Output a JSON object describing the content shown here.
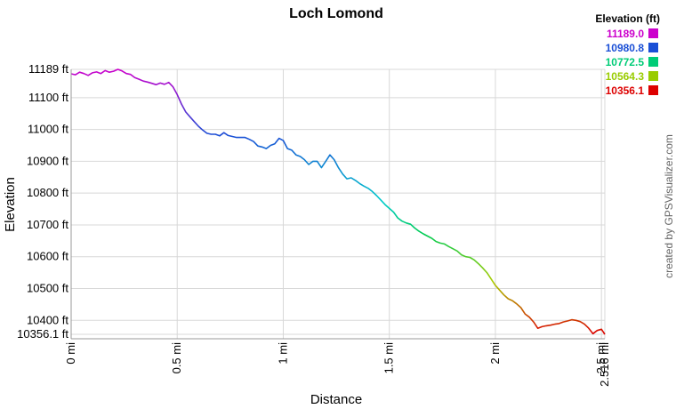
{
  "chart_data": {
    "type": "line",
    "title": "Loch Lomond",
    "xlabel": "Distance",
    "ylabel": "Elevation",
    "xlim": [
      0,
      2.516
    ],
    "ylim": [
      10356.1,
      11189
    ],
    "x_ticks": [
      {
        "value": 0,
        "label": "0 mi"
      },
      {
        "value": 0.5,
        "label": "0.5 mi"
      },
      {
        "value": 1,
        "label": "1 mi"
      },
      {
        "value": 1.5,
        "label": "1.5 mi"
      },
      {
        "value": 2,
        "label": "2 mi"
      },
      {
        "value": 2.5,
        "label": "2.5 mi"
      },
      {
        "value": 2.516,
        "label": "2.516 mi"
      }
    ],
    "y_ticks": [
      {
        "value": 11189,
        "label": "11189 ft"
      },
      {
        "value": 11100,
        "label": "11100 ft"
      },
      {
        "value": 11000,
        "label": "11000 ft"
      },
      {
        "value": 10900,
        "label": "10900 ft"
      },
      {
        "value": 10800,
        "label": "10800 ft"
      },
      {
        "value": 10700,
        "label": "10700 ft"
      },
      {
        "value": 10600,
        "label": "10600 ft"
      },
      {
        "value": 10500,
        "label": "10500 ft"
      },
      {
        "value": 10400,
        "label": "10400 ft"
      },
      {
        "value": 10356.1,
        "label": "10356.1 ft"
      }
    ],
    "grid": true,
    "legend": {
      "title": "Elevation (ft)",
      "position": "top-right",
      "entries": [
        {
          "label": "11189.0",
          "color": "#cc00cc"
        },
        {
          "label": "10980.8",
          "color": "#1a4fd6"
        },
        {
          "label": "10772.5",
          "color": "#00cc77"
        },
        {
          "label": "10564.3",
          "color": "#99cc00"
        },
        {
          "label": "10356.1",
          "color": "#dd0000"
        }
      ]
    },
    "credit": "created by GPSVisualizer.com",
    "series": [
      {
        "points": [
          [
            0.0,
            11175
          ],
          [
            0.02,
            11172
          ],
          [
            0.04,
            11180
          ],
          [
            0.06,
            11176
          ],
          [
            0.08,
            11170
          ],
          [
            0.1,
            11178
          ],
          [
            0.12,
            11181
          ],
          [
            0.14,
            11176
          ],
          [
            0.16,
            11185
          ],
          [
            0.18,
            11180
          ],
          [
            0.2,
            11183
          ],
          [
            0.22,
            11189
          ],
          [
            0.24,
            11184
          ],
          [
            0.26,
            11176
          ],
          [
            0.28,
            11173
          ],
          [
            0.3,
            11163
          ],
          [
            0.32,
            11158
          ],
          [
            0.34,
            11152
          ],
          [
            0.36,
            11149
          ],
          [
            0.38,
            11145
          ],
          [
            0.4,
            11141
          ],
          [
            0.42,
            11146
          ],
          [
            0.44,
            11142
          ],
          [
            0.46,
            11148
          ],
          [
            0.48,
            11134
          ],
          [
            0.5,
            11110
          ],
          [
            0.52,
            11080
          ],
          [
            0.54,
            11055
          ],
          [
            0.56,
            11040
          ],
          [
            0.58,
            11025
          ],
          [
            0.6,
            11010
          ],
          [
            0.62,
            10998
          ],
          [
            0.64,
            10988
          ],
          [
            0.66,
            10985
          ],
          [
            0.68,
            10985
          ],
          [
            0.7,
            10980
          ],
          [
            0.72,
            10990
          ],
          [
            0.74,
            10981
          ],
          [
            0.76,
            10978
          ],
          [
            0.78,
            10975
          ],
          [
            0.8,
            10975
          ],
          [
            0.82,
            10975
          ],
          [
            0.84,
            10969
          ],
          [
            0.86,
            10962
          ],
          [
            0.88,
            10948
          ],
          [
            0.9,
            10945
          ],
          [
            0.92,
            10940
          ],
          [
            0.94,
            10950
          ],
          [
            0.96,
            10955
          ],
          [
            0.98,
            10972
          ],
          [
            1.0,
            10965
          ],
          [
            1.02,
            10940
          ],
          [
            1.04,
            10935
          ],
          [
            1.06,
            10920
          ],
          [
            1.08,
            10915
          ],
          [
            1.1,
            10905
          ],
          [
            1.12,
            10890
          ],
          [
            1.14,
            10900
          ],
          [
            1.16,
            10900
          ],
          [
            1.18,
            10880
          ],
          [
            1.2,
            10900
          ],
          [
            1.22,
            10920
          ],
          [
            1.24,
            10905
          ],
          [
            1.26,
            10880
          ],
          [
            1.28,
            10860
          ],
          [
            1.3,
            10845
          ],
          [
            1.32,
            10848
          ],
          [
            1.34,
            10840
          ],
          [
            1.36,
            10830
          ],
          [
            1.38,
            10822
          ],
          [
            1.4,
            10815
          ],
          [
            1.42,
            10805
          ],
          [
            1.44,
            10792
          ],
          [
            1.46,
            10778
          ],
          [
            1.48,
            10764
          ],
          [
            1.5,
            10752
          ],
          [
            1.52,
            10740
          ],
          [
            1.54,
            10722
          ],
          [
            1.56,
            10712
          ],
          [
            1.58,
            10706
          ],
          [
            1.6,
            10702
          ],
          [
            1.62,
            10690
          ],
          [
            1.64,
            10680
          ],
          [
            1.66,
            10672
          ],
          [
            1.68,
            10665
          ],
          [
            1.7,
            10658
          ],
          [
            1.72,
            10648
          ],
          [
            1.74,
            10643
          ],
          [
            1.76,
            10640
          ],
          [
            1.78,
            10632
          ],
          [
            1.8,
            10625
          ],
          [
            1.82,
            10618
          ],
          [
            1.84,
            10606
          ],
          [
            1.86,
            10600
          ],
          [
            1.88,
            10598
          ],
          [
            1.9,
            10590
          ],
          [
            1.92,
            10578
          ],
          [
            1.94,
            10565
          ],
          [
            1.96,
            10550
          ],
          [
            1.98,
            10530
          ],
          [
            2.0,
            10510
          ],
          [
            2.02,
            10495
          ],
          [
            2.04,
            10480
          ],
          [
            2.06,
            10468
          ],
          [
            2.08,
            10462
          ],
          [
            2.1,
            10452
          ],
          [
            2.12,
            10440
          ],
          [
            2.14,
            10420
          ],
          [
            2.16,
            10410
          ],
          [
            2.18,
            10395
          ],
          [
            2.2,
            10375
          ],
          [
            2.22,
            10380
          ],
          [
            2.24,
            10383
          ],
          [
            2.26,
            10385
          ],
          [
            2.28,
            10388
          ],
          [
            2.3,
            10390
          ],
          [
            2.32,
            10395
          ],
          [
            2.34,
            10398
          ],
          [
            2.36,
            10402
          ],
          [
            2.38,
            10400
          ],
          [
            2.4,
            10396
          ],
          [
            2.42,
            10388
          ],
          [
            2.44,
            10375
          ],
          [
            2.46,
            10358
          ],
          [
            2.48,
            10368
          ],
          [
            2.5,
            10372
          ],
          [
            2.516,
            10356.1
          ]
        ]
      }
    ]
  }
}
